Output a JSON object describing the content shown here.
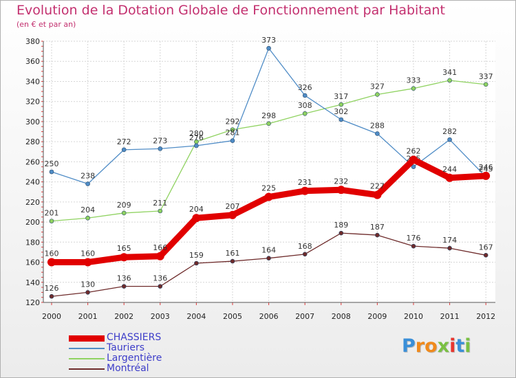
{
  "header": {
    "title": "Evolution de la Dotation Globale de Fonctionnement par Habitant",
    "subtitle": "(en € et par an)"
  },
  "chart_data": {
    "type": "line",
    "x": [
      "2000",
      "2001",
      "2002",
      "2003",
      "2004",
      "2005",
      "2006",
      "2007",
      "2008",
      "2009",
      "2010",
      "2011",
      "2012"
    ],
    "ylim": [
      120,
      380
    ],
    "yticks": [
      120,
      140,
      160,
      180,
      200,
      220,
      240,
      260,
      280,
      300,
      320,
      340,
      360,
      380
    ],
    "grid": true,
    "legend_position": "bottom-left",
    "series": [
      {
        "name": "CHASSIERS",
        "color": "#e10000",
        "values": [
          160,
          160,
          165,
          166,
          204,
          207,
          225,
          231,
          232,
          227,
          262,
          244,
          246
        ]
      },
      {
        "name": "Tauriers",
        "color": "#4f8cc6",
        "values": [
          250,
          238,
          272,
          273,
          276,
          281,
          373,
          326,
          302,
          288,
          255,
          282,
          245
        ]
      },
      {
        "name": "Largentière",
        "color": "#8fd260",
        "values": [
          201,
          204,
          209,
          211,
          280,
          292,
          298,
          308,
          317,
          327,
          333,
          341,
          337
        ]
      },
      {
        "name": "Montréal",
        "color": "#6e2b2b",
        "values": [
          126,
          130,
          136,
          136,
          159,
          161,
          164,
          168,
          189,
          187,
          176,
          174,
          167
        ]
      }
    ]
  },
  "logo": {
    "letters": [
      "P",
      "r",
      "o",
      "x",
      "i",
      "t",
      "i"
    ],
    "colors": [
      "#3a8fd8",
      "#f08a1c",
      "#f08a1c",
      "#7ac043",
      "#e8362f",
      "#3a8fd8",
      "#7ac043"
    ]
  }
}
